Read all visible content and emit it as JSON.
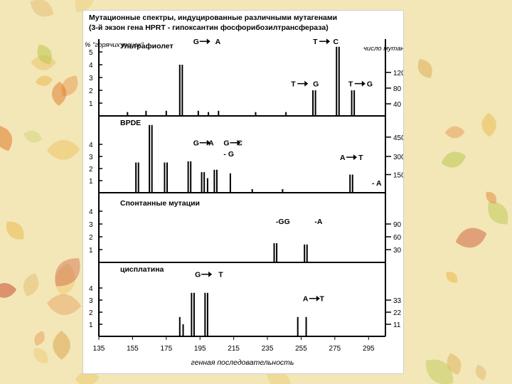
{
  "theme": {
    "background": "#f3e7b8",
    "leaf_colors": [
      "#e07a2a",
      "#c8452a",
      "#e9b94a",
      "#b9c64a",
      "#d89a3a"
    ]
  },
  "header": {
    "title": "Мутационные спектры, индуцированные различными мутагенами",
    "subtitle": "(3-й экзон гена HPRT - гипоксантин фосфорибозилтрансфераза)"
  },
  "chart_data": {
    "type": "bar",
    "left_axis_caption": "% \"горячих точек\"",
    "right_axis_caption": "число мутантов",
    "xlabel": "генная последовательность",
    "x_ticks": [
      135,
      155,
      175,
      195,
      215,
      235,
      255,
      275,
      295
    ],
    "xlim": [
      135,
      305
    ],
    "panels": [
      {
        "name": "Ультрафиолет",
        "left_ticks": [
          "1",
          "2",
          "3",
          "4",
          "5"
        ],
        "left_max": 5,
        "right_ticks": [
          {
            "label": "40",
            "level": 1
          },
          {
            "label": "80",
            "level": 2.3
          },
          {
            "label": "120",
            "level": 3.6
          }
        ],
        "annotations": [
          {
            "text": "G",
            "x": 191,
            "level": 5.6,
            "arrow": true
          },
          {
            "text": "A",
            "x": 204,
            "level": 5.6
          },
          {
            "text": "T",
            "x": 262,
            "level": 5.6,
            "arrow": true
          },
          {
            "text": "C",
            "x": 274,
            "level": 5.6
          },
          {
            "text": "T",
            "x": 249,
            "level": 2.3,
            "arrow": true
          },
          {
            "text": "G",
            "x": 262,
            "level": 2.3
          },
          {
            "text": "T",
            "x": 283,
            "level": 2.3,
            "arrow": true
          },
          {
            "text": "G",
            "x": 294,
            "level": 2.3
          }
        ],
        "bars": [
          {
            "x": 152,
            "value": 0.3
          },
          {
            "x": 163,
            "value": 0.4
          },
          {
            "x": 175,
            "value": 0.4
          },
          {
            "x": 183,
            "value": 4.0
          },
          {
            "x": 184.5,
            "value": 4.0
          },
          {
            "x": 194,
            "value": 0.4
          },
          {
            "x": 200,
            "value": 0.3
          },
          {
            "x": 206,
            "value": 0.4
          },
          {
            "x": 228,
            "value": 0.3
          },
          {
            "x": 246,
            "value": 0.3
          },
          {
            "x": 262,
            "value": 2.0
          },
          {
            "x": 263.5,
            "value": 2.0
          },
          {
            "x": 276,
            "value": 5.4
          },
          {
            "x": 277.5,
            "value": 5.4
          },
          {
            "x": 285,
            "value": 2.0
          },
          {
            "x": 286.5,
            "value": 2.0
          }
        ]
      },
      {
        "name": "BPDE",
        "left_ticks": [
          "1",
          "2",
          "3",
          "4"
        ],
        "left_max": 4,
        "right_ticks": [
          {
            "label": "150",
            "level": 1.5
          },
          {
            "label": "300",
            "level": 3
          },
          {
            "label": "450",
            "level": 4.6
          }
        ],
        "annotations": [
          {
            "text": "G",
            "x": 191,
            "level": 3.9,
            "arrow": true
          },
          {
            "text": "A",
            "x": 200,
            "level": 3.9
          },
          {
            "text": "G",
            "x": 209,
            "level": 3.9,
            "arrow": true
          },
          {
            "text": "C",
            "x": 217,
            "level": 3.9
          },
          {
            "text": "- G",
            "x": 209,
            "level": 3.0
          },
          {
            "text": "A",
            "x": 278,
            "level": 2.7,
            "arrow": true
          },
          {
            "text": "T",
            "x": 289,
            "level": 2.7
          },
          {
            "text": "- A",
            "x": 297,
            "level": 0.6
          }
        ],
        "bars": [
          {
            "x": 157,
            "value": 2.5
          },
          {
            "x": 158.5,
            "value": 2.5
          },
          {
            "x": 165,
            "value": 5.6
          },
          {
            "x": 166.5,
            "value": 5.6
          },
          {
            "x": 174,
            "value": 2.5
          },
          {
            "x": 175.5,
            "value": 2.5
          },
          {
            "x": 188,
            "value": 2.6
          },
          {
            "x": 189.5,
            "value": 2.6
          },
          {
            "x": 196,
            "value": 1.7
          },
          {
            "x": 197.5,
            "value": 1.7
          },
          {
            "x": 199.5,
            "value": 1.2
          },
          {
            "x": 203.5,
            "value": 1.9
          },
          {
            "x": 205,
            "value": 1.9
          },
          {
            "x": 213,
            "value": 1.6
          },
          {
            "x": 226,
            "value": 0.3
          },
          {
            "x": 244,
            "value": 0.3
          },
          {
            "x": 284,
            "value": 1.5
          },
          {
            "x": 285.5,
            "value": 1.5
          }
        ]
      },
      {
        "name": "Спонтанные мутации",
        "left_ticks": [
          "1",
          "2",
          "3",
          "4"
        ],
        "left_max": 4,
        "right_ticks": [
          {
            "label": "30",
            "level": 1
          },
          {
            "label": "60",
            "level": 2
          },
          {
            "label": "90",
            "level": 3
          }
        ],
        "annotations": [
          {
            "text": "-GG",
            "x": 240,
            "level": 3.0
          },
          {
            "text": "-A",
            "x": 263,
            "level": 3.0
          }
        ],
        "bars": [
          {
            "x": 239,
            "value": 1.5
          },
          {
            "x": 240.5,
            "value": 1.5
          },
          {
            "x": 257,
            "value": 1.4
          },
          {
            "x": 258.5,
            "value": 1.4
          }
        ]
      },
      {
        "name": "цисплатина",
        "left_ticks": [
          "1",
          "2",
          "3",
          "4"
        ],
        "left_max": 4,
        "right_ticks": [
          {
            "label": "11",
            "level": 1
          },
          {
            "label": "22",
            "level": 2
          },
          {
            "label": "33",
            "level": 3
          }
        ],
        "annotations": [
          {
            "text": "G",
            "x": 192,
            "level": 4.9,
            "arrow": true
          },
          {
            "text": "T",
            "x": 206,
            "level": 4.9
          },
          {
            "text": "A",
            "x": 256,
            "level": 2.9,
            "arrow": true
          },
          {
            "text": "T",
            "x": 266,
            "level": 2.9
          }
        ],
        "bars": [
          {
            "x": 183,
            "value": 1.6
          },
          {
            "x": 185,
            "value": 1.0
          },
          {
            "x": 190,
            "value": 3.6
          },
          {
            "x": 191.5,
            "value": 3.6
          },
          {
            "x": 198,
            "value": 3.6
          },
          {
            "x": 199.5,
            "value": 3.6
          },
          {
            "x": 253,
            "value": 1.6
          },
          {
            "x": 258,
            "value": 1.6
          }
        ]
      }
    ]
  }
}
